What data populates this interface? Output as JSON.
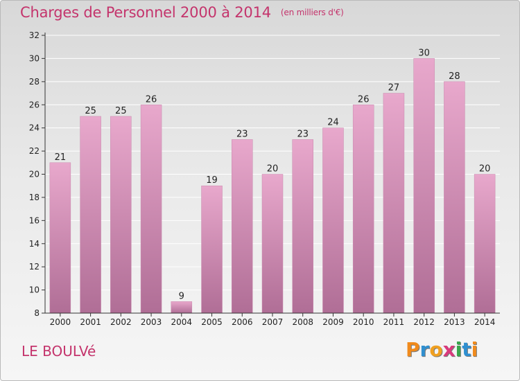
{
  "header": {
    "title": "Charges de Personnel 2000 à 2014",
    "subtitle": "(en milliers d'€)"
  },
  "footer": {
    "commune": "LE BOULVé",
    "logo_text": "Proxiti",
    "logo_colors": [
      "#f08a1c",
      "#2f8fd0",
      "#f0a020",
      "#d93a7c",
      "#3aa64c",
      "#2f8fd0",
      "#f08a1c"
    ]
  },
  "colors": {
    "bar_top": "#e8a8cc",
    "bar_bottom": "#b06e96",
    "title": "#c4346c",
    "axis": "#333333",
    "grid": "#ffffff"
  },
  "chart_data": {
    "type": "bar",
    "title": "Charges de Personnel 2000 à 2014",
    "subtitle": "(en milliers d'€)",
    "xlabel": "",
    "ylabel": "",
    "categories": [
      "2000",
      "2001",
      "2002",
      "2003",
      "2004",
      "2005",
      "2006",
      "2007",
      "2008",
      "2009",
      "2010",
      "2011",
      "2012",
      "2013",
      "2014"
    ],
    "values": [
      21,
      25,
      25,
      26,
      9,
      19,
      23,
      20,
      23,
      24,
      26,
      27,
      30,
      28,
      20
    ],
    "ylim": [
      8,
      32
    ],
    "yticks": [
      8,
      10,
      12,
      14,
      16,
      18,
      20,
      22,
      24,
      26,
      28,
      30,
      32
    ],
    "grid": true,
    "legend": "none"
  }
}
